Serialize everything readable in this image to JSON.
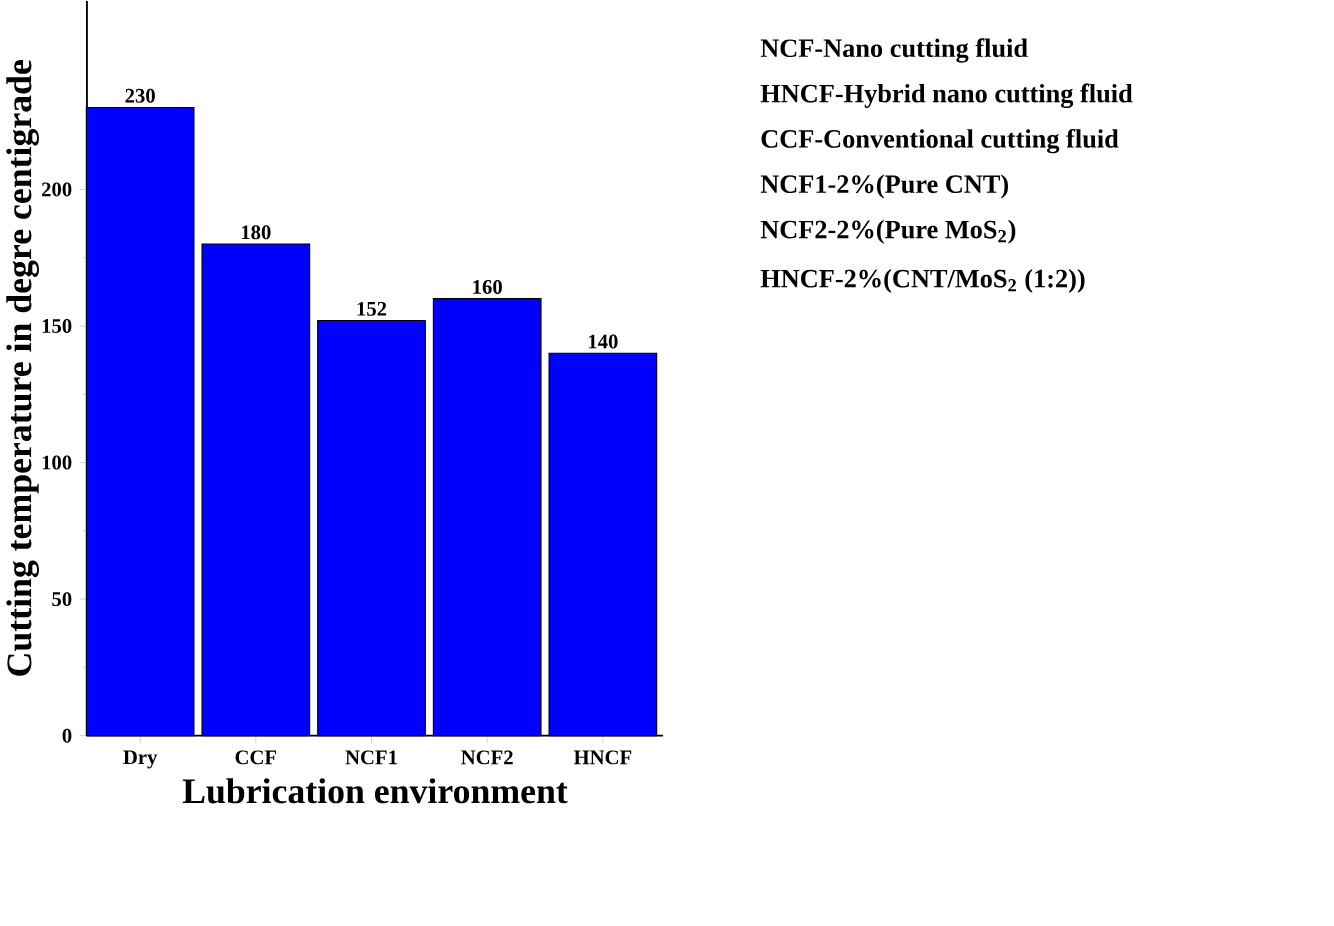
{
  "chart_data": {
    "type": "bar",
    "xlabel": "Lubrication environment",
    "ylabel": "Cutting temperature in degre centigrade",
    "categories": [
      "Dry",
      "CCF",
      "NCF1",
      "NCF2",
      "HNCF"
    ],
    "values": [
      230,
      180,
      152,
      160,
      140
    ],
    "color": "#0000ff",
    "ylim": [
      0,
      269
    ],
    "yticks": [
      0,
      50,
      100,
      150,
      200
    ],
    "data_labels": true,
    "annotations": [
      "NCF-Nano cutting fluid",
      "HNCF-Hybrid nano cutting fluid",
      "CCF-Conventional cutting fluid",
      "NCF1-2%(Pure CNT)",
      "NCF2-2%(Pure MoS$_{2}$)",
      "HNCF-2%(CNT/MoS$_{2}$ (1:2))"
    ]
  }
}
